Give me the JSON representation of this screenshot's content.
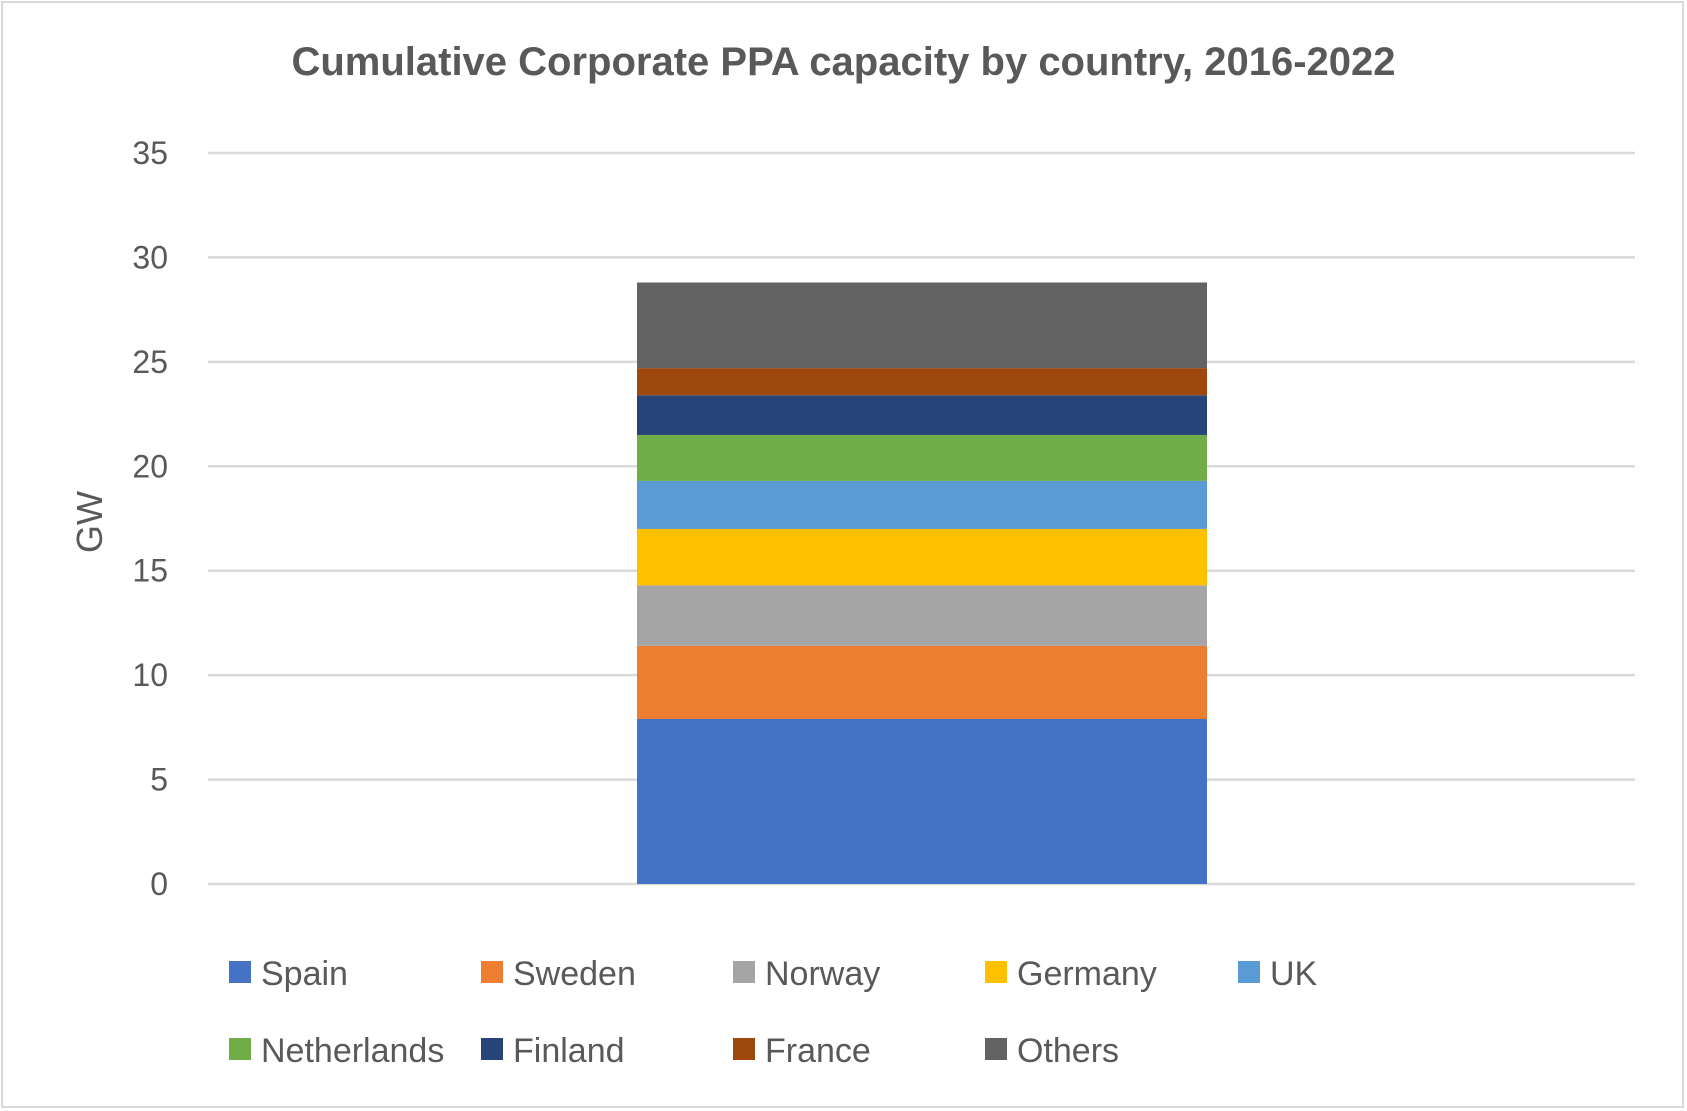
{
  "chart_data": {
    "type": "bar",
    "stacked": true,
    "title": "Cumulative Corporate PPA capacity by country, 2016-2022",
    "xlabel": "",
    "ylabel": "GW",
    "ylim": [
      0,
      35
    ],
    "yticks": [
      0,
      5,
      10,
      15,
      20,
      25,
      30,
      35
    ],
    "grid": true,
    "legend_position": "bottom",
    "categories": [
      ""
    ],
    "series": [
      {
        "name": "Spain",
        "values": [
          7.9
        ],
        "color": "#4472C4"
      },
      {
        "name": "Sweden",
        "values": [
          3.5
        ],
        "color": "#ED7D31"
      },
      {
        "name": "Norway",
        "values": [
          2.9
        ],
        "color": "#A5A5A5"
      },
      {
        "name": "Germany",
        "values": [
          2.7
        ],
        "color": "#FFC000"
      },
      {
        "name": "UK",
        "values": [
          2.3
        ],
        "color": "#5B9BD5"
      },
      {
        "name": "Netherlands",
        "values": [
          2.2
        ],
        "color": "#70AD47"
      },
      {
        "name": "Finland",
        "values": [
          1.9
        ],
        "color": "#264478"
      },
      {
        "name": "France",
        "values": [
          1.3
        ],
        "color": "#9E480E"
      },
      {
        "name": "Others",
        "values": [
          4.1
        ],
        "color": "#636363"
      }
    ]
  }
}
